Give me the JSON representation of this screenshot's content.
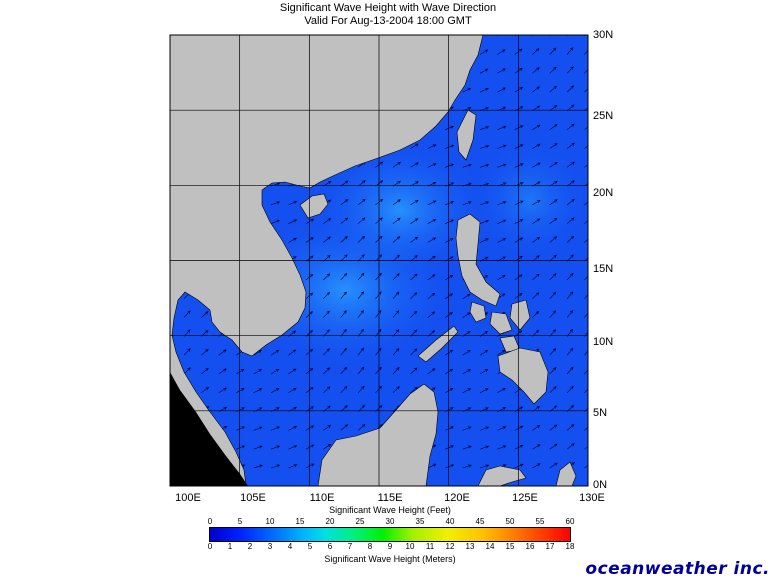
{
  "title": "Significant Wave Height with Wave Direction",
  "subtitle": "Valid For Aug-13-2004 18:00 GMT",
  "map": {
    "lon_range": [
      100,
      130
    ],
    "lat_range": [
      0,
      30
    ],
    "lon_labels": [
      "100E",
      "105E",
      "110E",
      "115E",
      "120E",
      "125E",
      "130E"
    ],
    "lat_labels": [
      "30N",
      "25N",
      "20N",
      "15N",
      "10N",
      "5N",
      "0N"
    ],
    "land_color": "#c0c0c0",
    "sea_color": "#1450f0",
    "gridline_color": "#000000",
    "arrow_color": "#00003c"
  },
  "colorbar": {
    "feet_title": "Significant Wave Height (Feet)",
    "meters_title": "Significant Wave Height (Meters)",
    "feet_ticks": [
      "0",
      "5",
      "10",
      "15",
      "20",
      "25",
      "30",
      "35",
      "40",
      "45",
      "50",
      "55",
      "60"
    ],
    "meters_ticks": [
      "0",
      "1",
      "2",
      "3",
      "4",
      "5",
      "6",
      "7",
      "8",
      "9",
      "10",
      "11",
      "12",
      "13",
      "14",
      "15",
      "16",
      "17",
      "18"
    ]
  },
  "brand": "oceanweather inc."
}
